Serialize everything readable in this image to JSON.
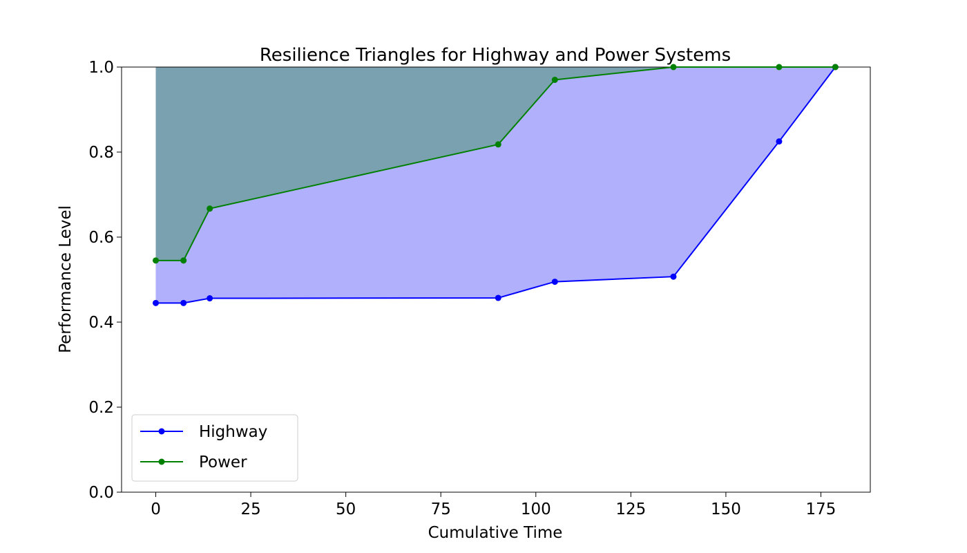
{
  "chart_data": {
    "type": "line",
    "title": "Resilience Triangles for Highway and Power Systems",
    "xlabel": "Cumulative Time",
    "ylabel": "Performance Level",
    "xlim": [
      -9,
      188
    ],
    "ylim": [
      0.0,
      1.0
    ],
    "xticks": [
      0,
      25,
      50,
      75,
      100,
      125,
      150,
      175
    ],
    "yticks": [
      0.0,
      0.2,
      0.4,
      0.6,
      0.8,
      1.0
    ],
    "xtick_labels": [
      "0",
      "25",
      "50",
      "75",
      "100",
      "125",
      "150",
      "175"
    ],
    "ytick_labels": [
      "0.0",
      "0.2",
      "0.4",
      "0.6",
      "0.8",
      "1.0"
    ],
    "grid": false,
    "legend_position": "lower-left",
    "series": [
      {
        "name": "Highway",
        "color": "#0000ff",
        "fill_color": "#b0b0fd",
        "x": [
          0,
          7.3,
          14.2,
          90.1,
          105,
          136.2,
          164,
          178.8
        ],
        "y": [
          0.445,
          0.445,
          0.456,
          0.457,
          0.495,
          0.507,
          0.825,
          1.0
        ]
      },
      {
        "name": "Power",
        "color": "#008000",
        "fill_color": "#7aa1b0",
        "x": [
          0,
          7.3,
          14.2,
          90.1,
          105,
          136.2,
          164,
          178.8
        ],
        "y": [
          0.545,
          0.545,
          0.667,
          0.818,
          0.97,
          1.0,
          1.0,
          1.0
        ]
      }
    ]
  }
}
